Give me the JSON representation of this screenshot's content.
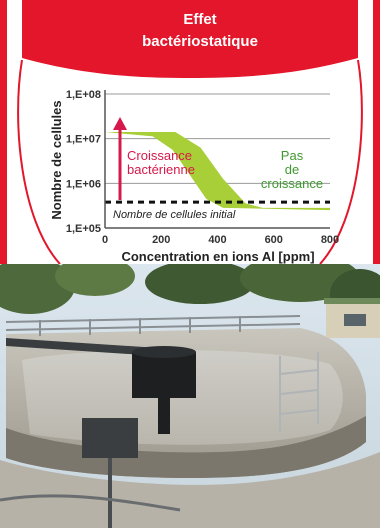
{
  "chart_data": {
    "type": "area",
    "title_lines": [
      "Effet",
      "bactériostatique"
    ],
    "xlabel": "Concentration en ions Al [ppm]",
    "ylabel": "Nombre de cellules",
    "x_ticks": [
      "0",
      "200",
      "400",
      "600",
      "800"
    ],
    "y_ticks": [
      "1,E+05",
      "1,E+06",
      "1,E+07",
      "1,E+08"
    ],
    "xlim": [
      0,
      800
    ],
    "ylim_log10": [
      5,
      8
    ],
    "y_scale": "log",
    "grid": true,
    "band_upper": [
      [
        0,
        7.15
      ],
      [
        250,
        7.15
      ],
      [
        340,
        6.8
      ],
      [
        420,
        6.1
      ],
      [
        500,
        5.55
      ],
      [
        560,
        5.45
      ],
      [
        800,
        5.45
      ]
    ],
    "band_lower": [
      [
        0,
        7.15
      ],
      [
        170,
        7.05
      ],
      [
        240,
        6.75
      ],
      [
        300,
        6.2
      ],
      [
        360,
        5.65
      ],
      [
        420,
        5.45
      ],
      [
        800,
        5.4
      ]
    ],
    "initial_level": 5.58,
    "annotations": {
      "growth": [
        "Croissance",
        "bactérienne"
      ],
      "no_growth": [
        "Pas",
        "de",
        "croissance"
      ],
      "initial": "Nombre de cellules initial"
    },
    "colors": {
      "red": "#e3162b",
      "green": "#a8cf37",
      "label_red": "#d6184a",
      "label_green": "#3f9a2f"
    }
  },
  "photo": {
    "description_icons": [
      "circular-tank",
      "walkway-railing",
      "scaffolding",
      "trees",
      "building"
    ]
  }
}
